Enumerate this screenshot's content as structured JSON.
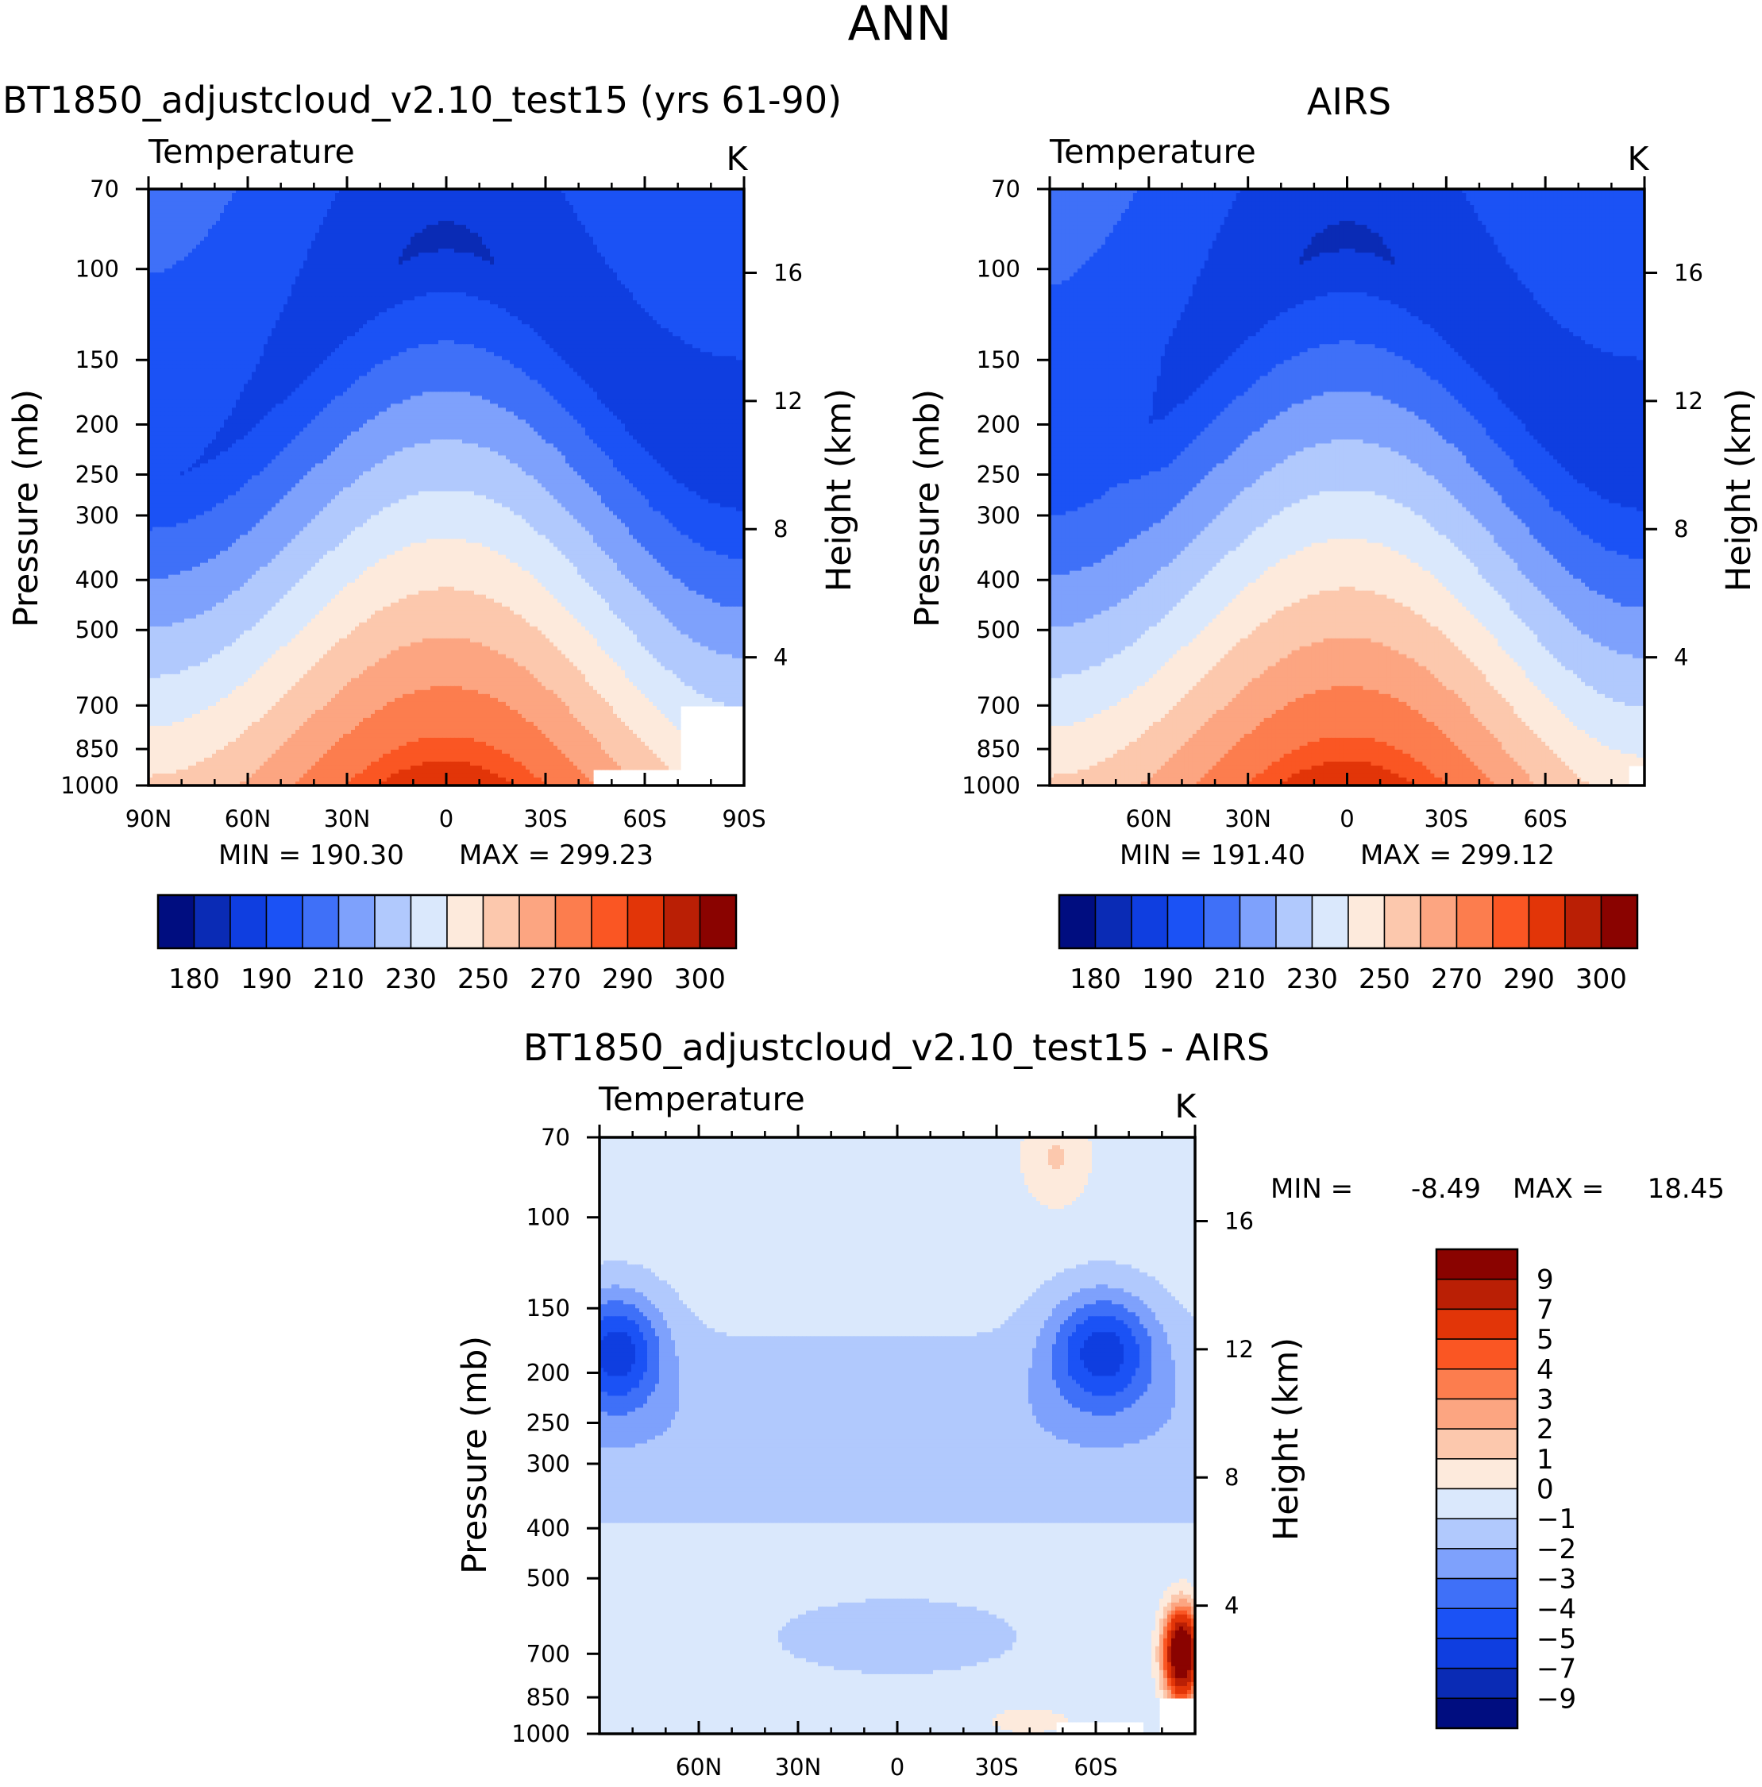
{
  "main_title": "ANN",
  "chart_data": [
    {
      "type": "heatmap",
      "id": "model",
      "title": "BT1850_adjustcloud_v2.10_test15 (yrs 61-90)",
      "variable_label": "Temperature",
      "units_label": "K",
      "ylabel": "Pressure (mb)",
      "ylabel2": "Height (km)",
      "x_ticks": [
        "90N",
        "60N",
        "30N",
        "0",
        "30S",
        "60S",
        "90S"
      ],
      "y_ticks": [
        "70",
        "100",
        "150",
        "200",
        "250",
        "300",
        "400",
        "500",
        "700",
        "850",
        "1000"
      ],
      "y2_ticks": [
        "16",
        "12",
        "8",
        "4"
      ],
      "min_label": "MIN =  190.30",
      "max_label": "MAX =  299.23",
      "min": 190.3,
      "max": 299.23,
      "field": {
        "kind": "abs",
        "surface": "gap-sh",
        "tropopause_shift": 0
      },
      "colorbar": {
        "orientation": "horizontal",
        "colors": [
          "#000d80",
          "#0a2bb5",
          "#0f3ee0",
          "#1b52f5",
          "#3f70f8",
          "#7ea1fc",
          "#b1c9fd",
          "#dae8fc",
          "#fdeadc",
          "#fcc8ad",
          "#fca581",
          "#fc7d4e",
          "#fa5623",
          "#e23508",
          "#ba1f05",
          "#8a0300"
        ],
        "tick_labels": [
          "180",
          "190",
          "210",
          "230",
          "250",
          "270",
          "290",
          "300"
        ]
      }
    },
    {
      "type": "heatmap",
      "id": "obs",
      "title": "AIRS",
      "variable_label": "Temperature",
      "units_label": "K",
      "ylabel": "Pressure (mb)",
      "ylabel2": "Height (km)",
      "x_ticks": [
        "",
        "60N",
        "30N",
        "0",
        "30S",
        "60S",
        ""
      ],
      "y_ticks": [
        "70",
        "100",
        "150",
        "200",
        "250",
        "300",
        "400",
        "500",
        "700",
        "850",
        "1000"
      ],
      "y2_ticks": [
        "16",
        "12",
        "8",
        "4"
      ],
      "min_label": "MIN =  191.40",
      "max_label": "MAX =  299.12",
      "min": 191.4,
      "max": 299.12,
      "field": {
        "kind": "abs",
        "surface": "airs",
        "tropopause_shift": 0
      },
      "colorbar": {
        "orientation": "horizontal",
        "colors": [
          "#000d80",
          "#0a2bb5",
          "#0f3ee0",
          "#1b52f5",
          "#3f70f8",
          "#7ea1fc",
          "#b1c9fd",
          "#dae8fc",
          "#fdeadc",
          "#fcc8ad",
          "#fca581",
          "#fc7d4e",
          "#fa5623",
          "#e23508",
          "#ba1f05",
          "#8a0300"
        ],
        "tick_labels": [
          "180",
          "190",
          "210",
          "230",
          "250",
          "270",
          "290",
          "300"
        ]
      }
    },
    {
      "type": "heatmap",
      "id": "diff",
      "title": "BT1850_adjustcloud_v2.10_test15 - AIRS",
      "variable_label": "Temperature",
      "units_label": "K",
      "ylabel": "Pressure (mb)",
      "ylabel2": "Height (km)",
      "x_ticks": [
        "",
        "60N",
        "30N",
        "0",
        "30S",
        "60S",
        ""
      ],
      "y_ticks": [
        "70",
        "100",
        "150",
        "200",
        "250",
        "300",
        "400",
        "500",
        "700",
        "850",
        "1000"
      ],
      "y2_ticks": [
        "16",
        "12",
        "8",
        "4"
      ],
      "min_label": "MIN =",
      "min_value": "-8.49",
      "max_label": "MAX =",
      "max_value": "18.45",
      "min": -8.49,
      "max": 18.45,
      "field": {
        "kind": "diff"
      },
      "colorbar": {
        "orientation": "vertical",
        "colors": [
          "#8a0300",
          "#ba1f05",
          "#e23508",
          "#fa5623",
          "#fc7d4e",
          "#fca581",
          "#fcc8ad",
          "#fdeadc",
          "#dae8fc",
          "#b1c9fd",
          "#7ea1fc",
          "#3f70f8",
          "#1b52f5",
          "#0f3ee0",
          "#0a2bb5",
          "#000d80"
        ],
        "tick_labels": [
          "9",
          "7",
          "5",
          "4",
          "3",
          "2",
          "1",
          "0",
          "-1",
          "-2",
          "-3",
          "-4",
          "-5",
          "-7",
          "-9"
        ]
      }
    }
  ]
}
